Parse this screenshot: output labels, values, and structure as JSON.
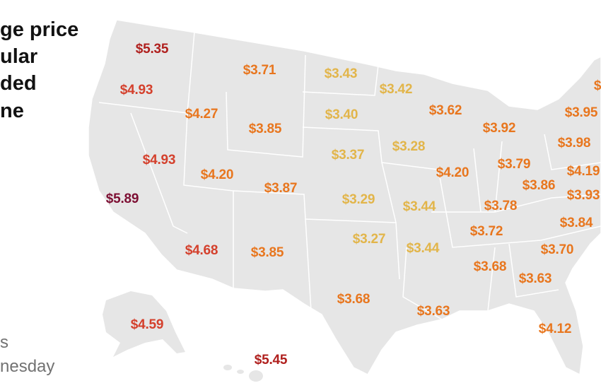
{
  "title_lines": [
    "ge price",
    "ular",
    "ded",
    "ne"
  ],
  "note_lines": [
    "s",
    "nesday"
  ],
  "colors": {
    "land": "#e6e6e6",
    "border": "#ffffff",
    "tier_maroon": "#7d0f33",
    "tier_red": "#b0201e",
    "tier_redorange": "#d4402c",
    "tier_orange": "#e8761e",
    "tier_yellow": "#e2b54a"
  },
  "prices": [
    {
      "state": "WA",
      "price": "$5.35",
      "tier": "red"
    },
    {
      "state": "MT",
      "price": "$3.71",
      "tier": "orange"
    },
    {
      "state": "ND",
      "price": "$3.43",
      "tier": "yellow"
    },
    {
      "state": "MN",
      "price": "$3.42",
      "tier": "yellow"
    },
    {
      "state": "OR",
      "price": "$4.93",
      "tier": "redorange"
    },
    {
      "state": "WI",
      "price": "$3.62",
      "tier": "orange"
    },
    {
      "state": "ID",
      "price": "$4.27",
      "tier": "orange"
    },
    {
      "state": "SD",
      "price": "$3.40",
      "tier": "yellow"
    },
    {
      "state": "WY",
      "price": "$3.85",
      "tier": "orange"
    },
    {
      "state": "MI",
      "price": "$3.92",
      "tier": "orange"
    },
    {
      "state": "NY",
      "price": "$3.95",
      "tier": "orange"
    },
    {
      "state": "IA",
      "price": "$3.28",
      "tier": "yellow"
    },
    {
      "state": "NE",
      "price": "$3.37",
      "tier": "yellow"
    },
    {
      "state": "PA",
      "price": "$3.98",
      "tier": "orange"
    },
    {
      "state": "NV",
      "price": "$4.93",
      "tier": "redorange"
    },
    {
      "state": "OH",
      "price": "$3.79",
      "tier": "orange"
    },
    {
      "state": "UT",
      "price": "$4.20",
      "tier": "orange"
    },
    {
      "state": "IL",
      "price": "$4.20",
      "tier": "orange"
    },
    {
      "state": "MD",
      "price": "$4.19",
      "tier": "orange"
    },
    {
      "state": "CO",
      "price": "$3.87",
      "tier": "orange"
    },
    {
      "state": "WV",
      "price": "$3.86",
      "tier": "orange"
    },
    {
      "state": "CA",
      "price": "$5.89",
      "tier": "maroon"
    },
    {
      "state": "KS",
      "price": "$3.29",
      "tier": "yellow"
    },
    {
      "state": "VA",
      "price": "$3.93",
      "tier": "orange"
    },
    {
      "state": "MO",
      "price": "$3.44",
      "tier": "yellow"
    },
    {
      "state": "KY",
      "price": "$3.78",
      "tier": "orange"
    },
    {
      "state": "NC",
      "price": "$3.84",
      "tier": "orange"
    },
    {
      "state": "TN",
      "price": "$3.72",
      "tier": "orange"
    },
    {
      "state": "AZ",
      "price": "$4.68",
      "tier": "redorange"
    },
    {
      "state": "OK",
      "price": "$3.27",
      "tier": "yellow"
    },
    {
      "state": "NM",
      "price": "$3.85",
      "tier": "orange"
    },
    {
      "state": "AR",
      "price": "$3.44",
      "tier": "yellow"
    },
    {
      "state": "SC",
      "price": "$3.70",
      "tier": "orange"
    },
    {
      "state": "AL",
      "price": "$3.68",
      "tier": "orange"
    },
    {
      "state": "GA",
      "price": "$3.63",
      "tier": "orange"
    },
    {
      "state": "TX",
      "price": "$3.68",
      "tier": "orange"
    },
    {
      "state": "LA",
      "price": "$3.63",
      "tier": "orange"
    },
    {
      "state": "FL",
      "price": "$4.12",
      "tier": "orange"
    },
    {
      "state": "AK",
      "price": "$4.59",
      "tier": "redorange"
    },
    {
      "state": "HI",
      "price": "$5.45",
      "tier": "red"
    },
    {
      "state": "ME",
      "price": "$",
      "tier": "orange"
    }
  ]
}
